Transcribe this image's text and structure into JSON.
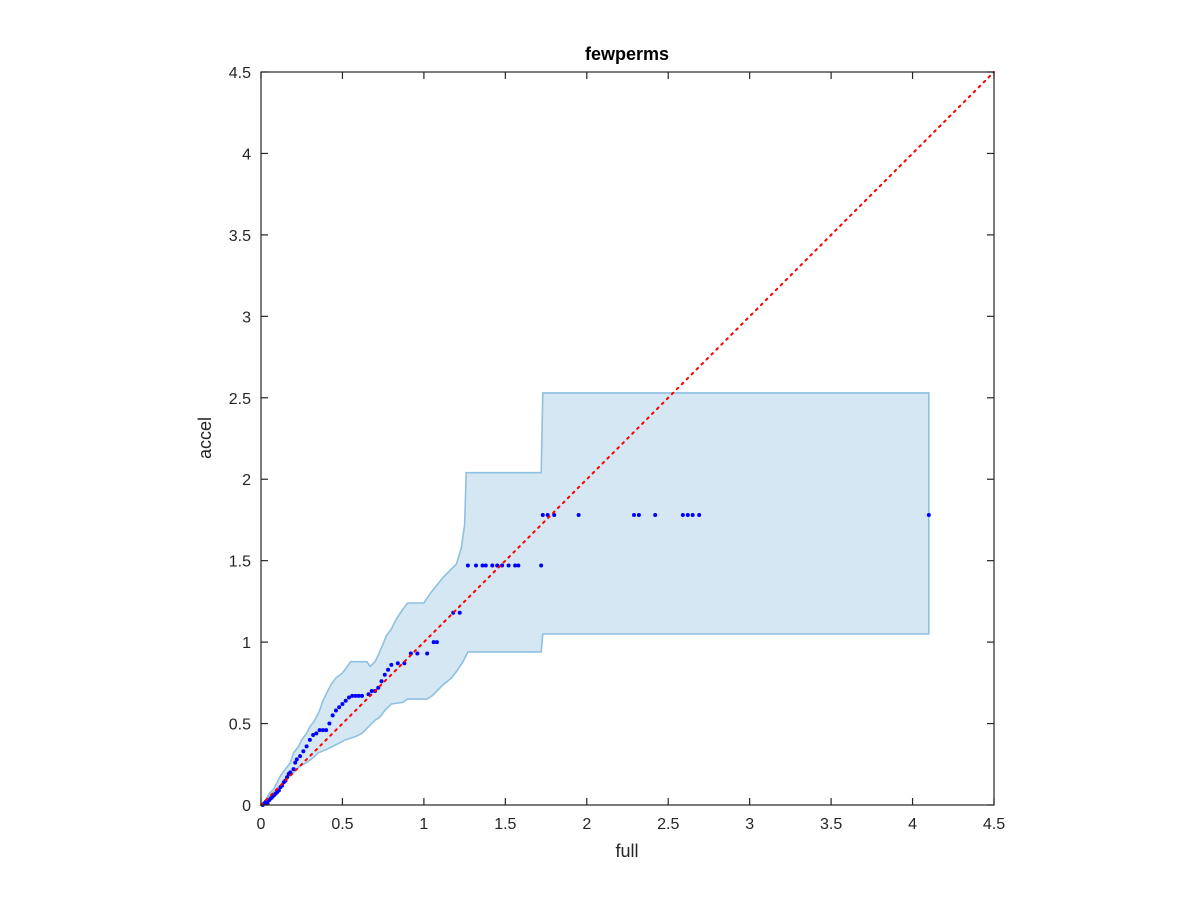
{
  "chart_data": {
    "type": "scatter",
    "title": "fewperms",
    "xlabel": "full",
    "ylabel": "accel",
    "xlim": [
      0,
      4.5
    ],
    "ylim": [
      0,
      4.5
    ],
    "xticks": [
      "0",
      "0.5",
      "1",
      "1.5",
      "2",
      "2.5",
      "3",
      "3.5",
      "4",
      "4.5"
    ],
    "yticks": [
      "0",
      "0.5",
      "1",
      "1.5",
      "2",
      "2.5",
      "3",
      "3.5",
      "4",
      "4.5"
    ],
    "grid": false,
    "colors": {
      "points": "#0000ff",
      "diagonal": "#ff0000",
      "band_fill": "#d6e7f4",
      "band_edge": "#8ec1e0",
      "axes": "#262626"
    },
    "diagonal": {
      "from": [
        0,
        0
      ],
      "to": [
        4.5,
        4.5
      ],
      "style": "dotted"
    },
    "band": {
      "upper": [
        [
          0,
          0
        ],
        [
          0.03,
          0.03
        ],
        [
          0.05,
          0.07
        ],
        [
          0.08,
          0.1
        ],
        [
          0.12,
          0.18
        ],
        [
          0.15,
          0.22
        ],
        [
          0.18,
          0.26
        ],
        [
          0.2,
          0.32
        ],
        [
          0.23,
          0.36
        ],
        [
          0.25,
          0.4
        ],
        [
          0.28,
          0.44
        ],
        [
          0.3,
          0.48
        ],
        [
          0.33,
          0.52
        ],
        [
          0.36,
          0.58
        ],
        [
          0.38,
          0.64
        ],
        [
          0.4,
          0.68
        ],
        [
          0.43,
          0.74
        ],
        [
          0.46,
          0.78
        ],
        [
          0.5,
          0.81
        ],
        [
          0.53,
          0.85
        ],
        [
          0.55,
          0.88
        ],
        [
          0.65,
          0.88
        ],
        [
          0.67,
          0.85
        ],
        [
          0.7,
          0.88
        ],
        [
          0.72,
          0.92
        ],
        [
          0.75,
          0.99
        ],
        [
          0.77,
          1.04
        ],
        [
          0.8,
          1.08
        ],
        [
          0.83,
          1.14
        ],
        [
          0.87,
          1.2
        ],
        [
          0.9,
          1.24
        ],
        [
          1.0,
          1.24
        ],
        [
          1.04,
          1.3
        ],
        [
          1.08,
          1.35
        ],
        [
          1.12,
          1.4
        ],
        [
          1.16,
          1.44
        ],
        [
          1.2,
          1.48
        ],
        [
          1.23,
          1.58
        ],
        [
          1.25,
          1.72
        ],
        [
          1.26,
          2.04
        ],
        [
          1.72,
          2.04
        ],
        [
          1.73,
          2.53
        ],
        [
          4.1,
          2.53
        ]
      ],
      "lower": [
        [
          4.1,
          1.05
        ],
        [
          1.73,
          1.05
        ],
        [
          1.72,
          0.94
        ],
        [
          1.27,
          0.94
        ],
        [
          1.24,
          0.88
        ],
        [
          1.2,
          0.82
        ],
        [
          1.17,
          0.78
        ],
        [
          1.12,
          0.74
        ],
        [
          1.08,
          0.7
        ],
        [
          1.05,
          0.67
        ],
        [
          1.02,
          0.65
        ],
        [
          0.9,
          0.65
        ],
        [
          0.87,
          0.63
        ],
        [
          0.8,
          0.62
        ],
        [
          0.76,
          0.58
        ],
        [
          0.73,
          0.54
        ],
        [
          0.7,
          0.52
        ],
        [
          0.66,
          0.48
        ],
        [
          0.62,
          0.44
        ],
        [
          0.58,
          0.42
        ],
        [
          0.52,
          0.4
        ],
        [
          0.48,
          0.38
        ],
        [
          0.44,
          0.36
        ],
        [
          0.4,
          0.34
        ],
        [
          0.35,
          0.32
        ],
        [
          0.32,
          0.29
        ],
        [
          0.28,
          0.26
        ],
        [
          0.24,
          0.24
        ],
        [
          0.2,
          0.2
        ],
        [
          0.16,
          0.16
        ],
        [
          0.12,
          0.12
        ],
        [
          0.08,
          0.08
        ],
        [
          0.04,
          0.04
        ],
        [
          0.01,
          0
        ],
        [
          0,
          0
        ]
      ]
    },
    "points": [
      [
        0.01,
        0.0
      ],
      [
        0.02,
        0.01
      ],
      [
        0.03,
        0.02
      ],
      [
        0.04,
        0.01
      ],
      [
        0.05,
        0.03
      ],
      [
        0.06,
        0.04
      ],
      [
        0.07,
        0.05
      ],
      [
        0.08,
        0.06
      ],
      [
        0.09,
        0.07
      ],
      [
        0.1,
        0.08
      ],
      [
        0.11,
        0.09
      ],
      [
        0.12,
        0.11
      ],
      [
        0.13,
        0.12
      ],
      [
        0.14,
        0.14
      ],
      [
        0.15,
        0.15
      ],
      [
        0.16,
        0.17
      ],
      [
        0.17,
        0.19
      ],
      [
        0.18,
        0.2
      ],
      [
        0.2,
        0.22
      ],
      [
        0.21,
        0.26
      ],
      [
        0.22,
        0.28
      ],
      [
        0.24,
        0.3
      ],
      [
        0.26,
        0.33
      ],
      [
        0.28,
        0.36
      ],
      [
        0.3,
        0.4
      ],
      [
        0.32,
        0.43
      ],
      [
        0.34,
        0.44
      ],
      [
        0.36,
        0.46
      ],
      [
        0.38,
        0.46
      ],
      [
        0.4,
        0.46
      ],
      [
        0.42,
        0.5
      ],
      [
        0.44,
        0.55
      ],
      [
        0.46,
        0.58
      ],
      [
        0.48,
        0.6
      ],
      [
        0.5,
        0.62
      ],
      [
        0.52,
        0.64
      ],
      [
        0.54,
        0.66
      ],
      [
        0.56,
        0.67
      ],
      [
        0.58,
        0.67
      ],
      [
        0.6,
        0.67
      ],
      [
        0.62,
        0.67
      ],
      [
        0.66,
        0.68
      ],
      [
        0.68,
        0.7
      ],
      [
        0.7,
        0.7
      ],
      [
        0.72,
        0.72
      ],
      [
        0.74,
        0.76
      ],
      [
        0.76,
        0.8
      ],
      [
        0.78,
        0.83
      ],
      [
        0.8,
        0.86
      ],
      [
        0.84,
        0.87
      ],
      [
        0.88,
        0.87
      ],
      [
        0.92,
        0.93
      ],
      [
        0.96,
        0.93
      ],
      [
        1.02,
        0.93
      ],
      [
        1.06,
        1.0
      ],
      [
        1.08,
        1.0
      ],
      [
        1.18,
        1.18
      ],
      [
        1.22,
        1.18
      ],
      [
        1.27,
        1.47
      ],
      [
        1.32,
        1.47
      ],
      [
        1.36,
        1.47
      ],
      [
        1.38,
        1.47
      ],
      [
        1.42,
        1.47
      ],
      [
        1.45,
        1.47
      ],
      [
        1.48,
        1.47
      ],
      [
        1.52,
        1.47
      ],
      [
        1.56,
        1.47
      ],
      [
        1.58,
        1.47
      ],
      [
        1.72,
        1.47
      ],
      [
        1.73,
        1.78
      ],
      [
        1.76,
        1.78
      ],
      [
        1.8,
        1.78
      ],
      [
        1.95,
        1.78
      ],
      [
        2.29,
        1.78
      ],
      [
        2.32,
        1.78
      ],
      [
        2.42,
        1.78
      ],
      [
        2.59,
        1.78
      ],
      [
        2.62,
        1.78
      ],
      [
        2.65,
        1.78
      ],
      [
        2.69,
        1.78
      ],
      [
        4.1,
        1.78
      ]
    ]
  }
}
